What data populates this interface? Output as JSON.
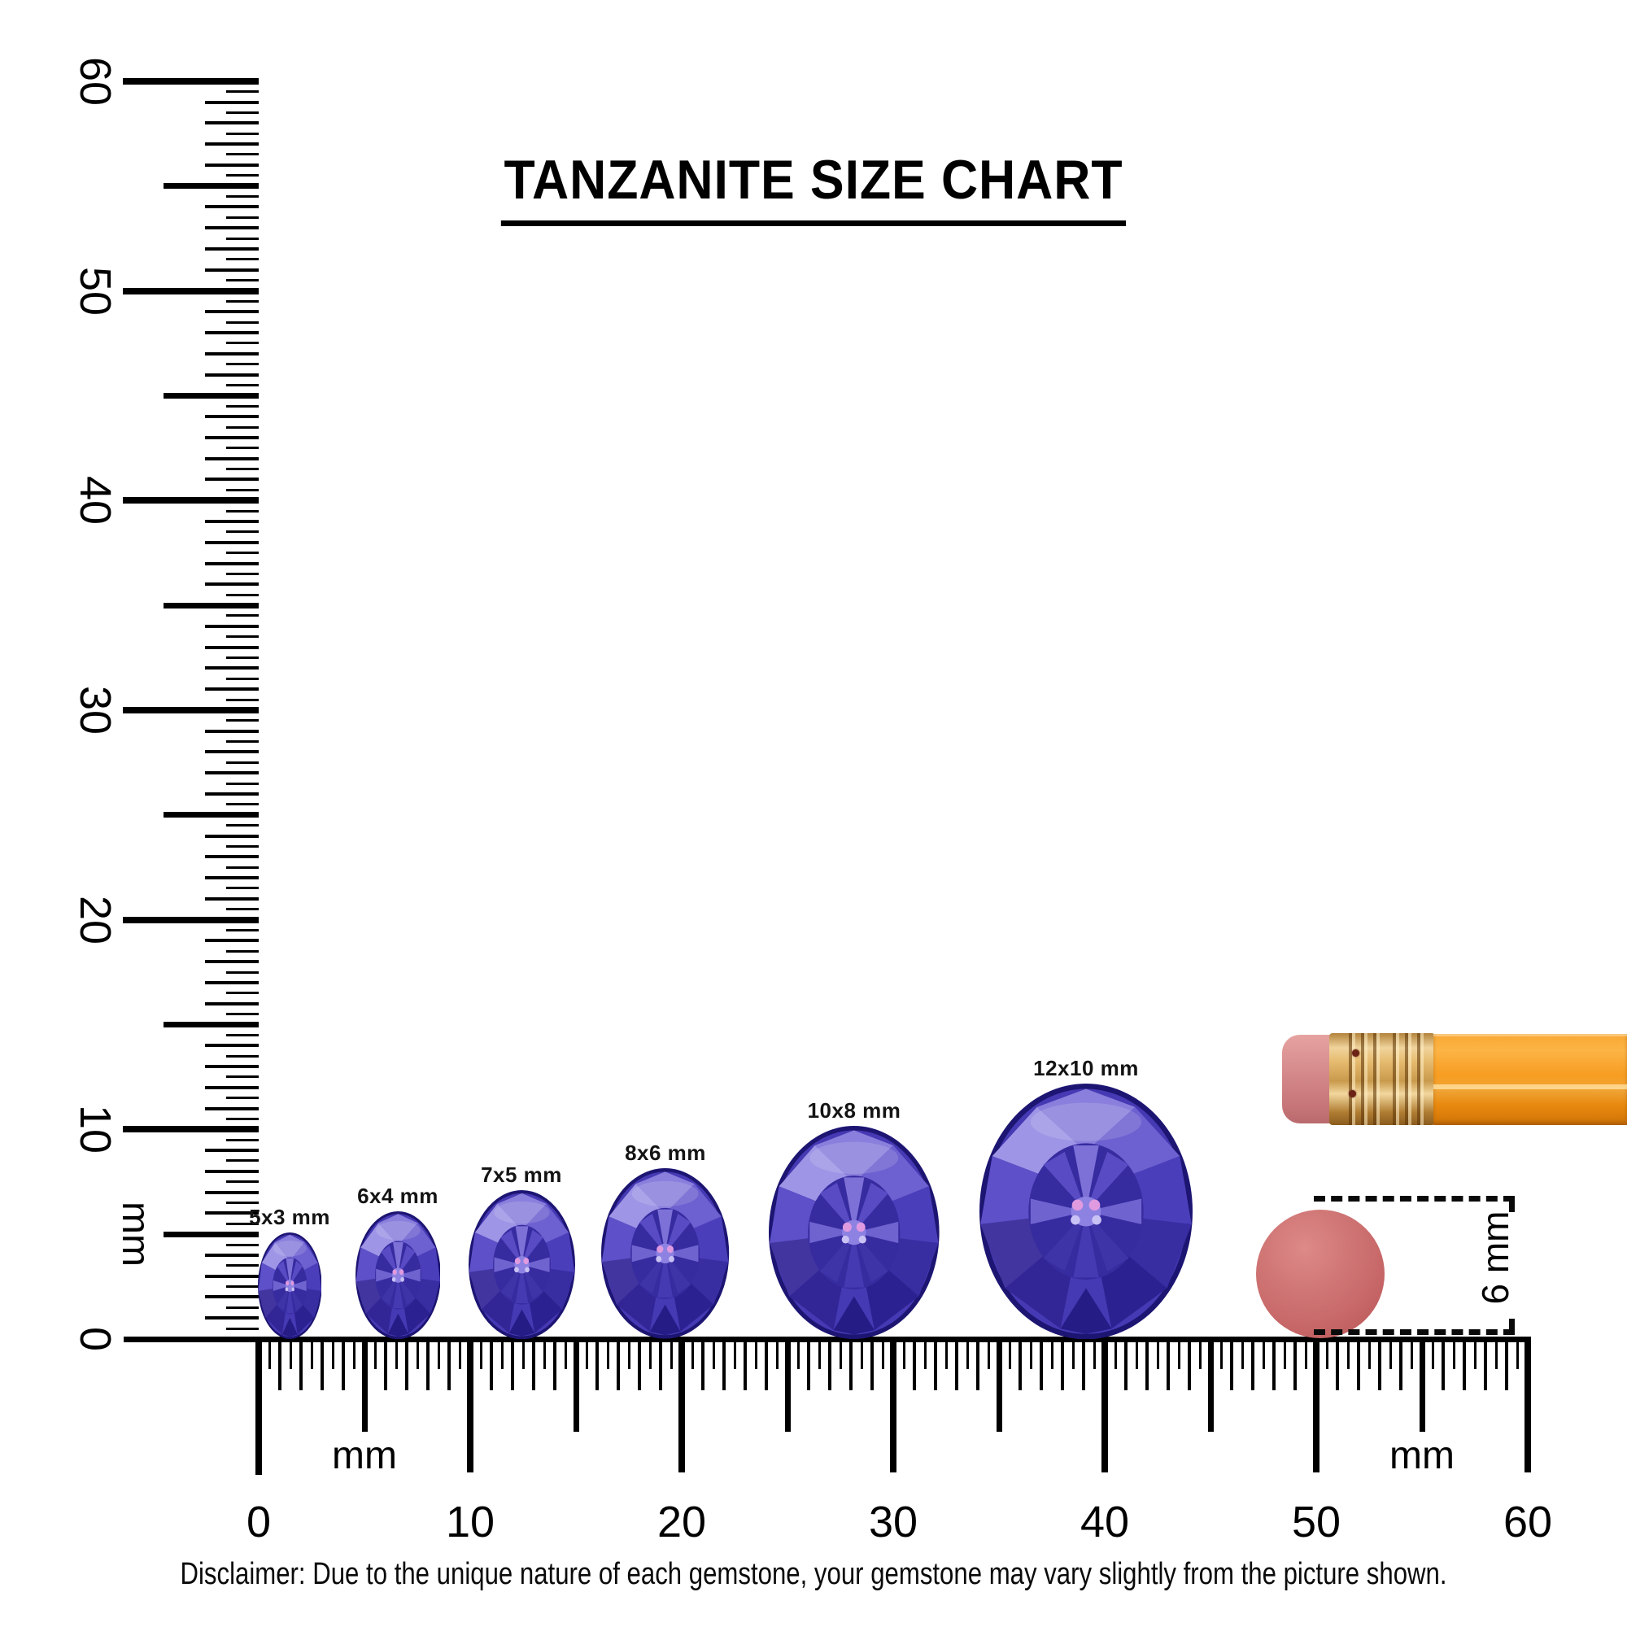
{
  "title": "TANZANITE SIZE CHART",
  "rulers": {
    "vertical": {
      "unit": "mm",
      "labels": [
        "0",
        "10",
        "20",
        "30",
        "40",
        "50",
        "60"
      ],
      "range_mm": 60
    },
    "horizontal": {
      "unit": "mm",
      "unit_right": "mm",
      "labels": [
        "0",
        "10",
        "20",
        "30",
        "40",
        "50",
        "60"
      ],
      "range_mm": 60
    }
  },
  "gems": [
    {
      "label": "5x3 mm",
      "width_mm": 3,
      "height_mm": 5
    },
    {
      "label": "6x4 mm",
      "width_mm": 4,
      "height_mm": 6
    },
    {
      "label": "7x5 mm",
      "width_mm": 5,
      "height_mm": 7
    },
    {
      "label": "8x6 mm",
      "width_mm": 6,
      "height_mm": 8
    },
    {
      "label": "10x8 mm",
      "width_mm": 8,
      "height_mm": 10
    },
    {
      "label": "12x10 mm",
      "width_mm": 10,
      "height_mm": 12
    }
  ],
  "reference": {
    "size_label": "6 mm",
    "dot_diameter_mm": 6
  },
  "disclaimer": "Disclaimer: Due to the unique nature of each gemstone, your gemstone may vary slightly from the picture shown.",
  "colors": {
    "ink": "#0a0a0a",
    "gem_dark": "#1d1572",
    "gem_primary": "#4639b4",
    "gem_light": "#9f95e6",
    "pencil_body": "#f79d22",
    "pencil_ferrule": "#c99a4c",
    "pencil_eraser": "#d4888a",
    "reference_dot": "#c96a6b"
  }
}
